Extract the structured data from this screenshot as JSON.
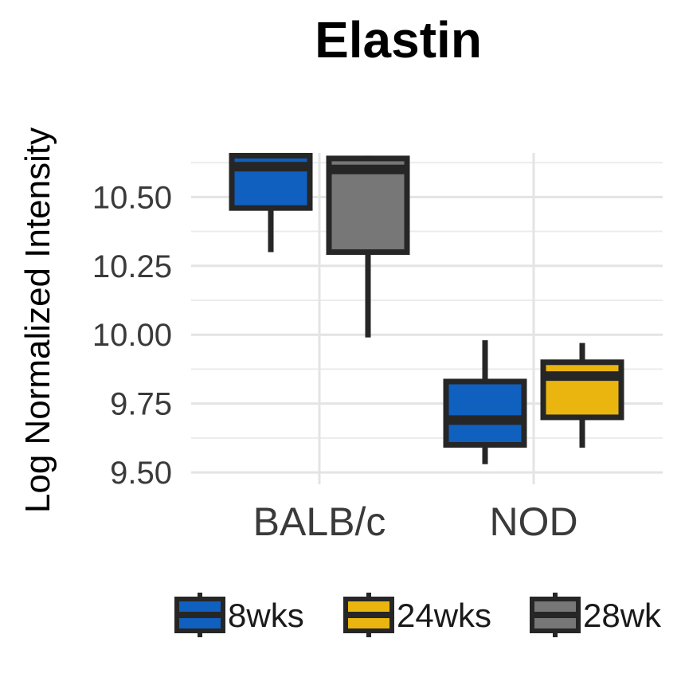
{
  "chart_data": {
    "type": "boxplot",
    "title": "Elastin",
    "xlabel": "",
    "ylabel": "Log Normalized Intensity",
    "categories": [
      "BALB/c",
      "NOD"
    ],
    "ylim": [
      9.48,
      10.66
    ],
    "yticks": [
      "9.50",
      "9.75",
      "10.00",
      "10.25",
      "10.50"
    ],
    "grid": true,
    "legend_position": "bottom",
    "series": [
      {
        "name": "8wks",
        "color": "#1060c0",
        "boxes": [
          {
            "category": "BALB/c",
            "min": 10.3,
            "q1": 10.46,
            "median": 10.61,
            "q3": 10.65,
            "max": 10.65
          },
          {
            "category": "NOD",
            "min": 9.53,
            "q1": 9.6,
            "median": 9.69,
            "q3": 9.83,
            "max": 9.98
          }
        ]
      },
      {
        "name": "24wks",
        "color": "#eab50e",
        "boxes": [
          {
            "category": "NOD",
            "min": 9.59,
            "q1": 9.7,
            "median": 9.85,
            "q3": 9.9,
            "max": 9.97
          }
        ]
      },
      {
        "name": "28wk",
        "color": "#777777",
        "boxes": [
          {
            "category": "BALB/c",
            "min": 9.99,
            "q1": 10.3,
            "median": 10.6,
            "q3": 10.64,
            "max": 10.65
          }
        ]
      }
    ]
  }
}
